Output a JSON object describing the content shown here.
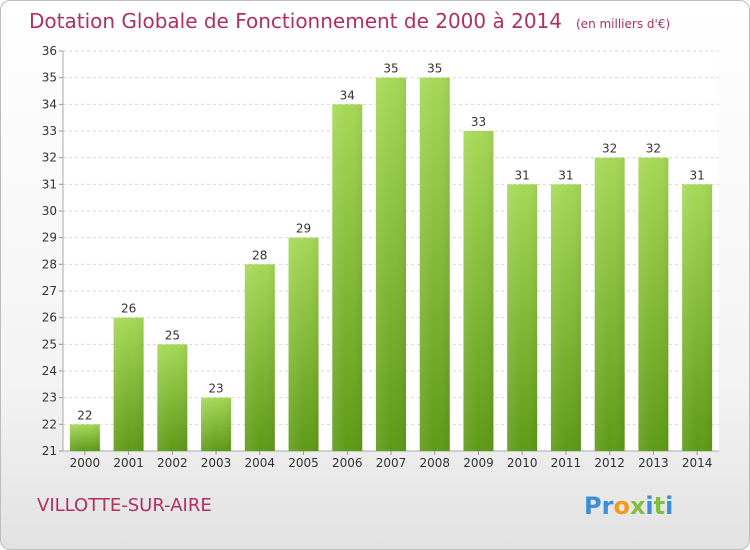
{
  "header": {
    "title": "Dotation Globale de Fonctionnement de 2000 à 2014",
    "unit_note": "(en milliers d'€)"
  },
  "footer": {
    "commune": "VILLOTTE-SUR-AIRE",
    "brand": "Proxiti"
  },
  "colors": {
    "title": "#b03060",
    "bar_light": "#a6d856",
    "bar_dark": "#5e9a16",
    "brand_letters": [
      "#3c8fd6",
      "#3c8fd6",
      "#f29a1f",
      "#7fbf3f",
      "#3c8fd6",
      "#7fbf3f",
      "#3c8fd6"
    ]
  },
  "chart_data": {
    "type": "bar",
    "title": "Dotation Globale de Fonctionnement de 2000 à 2014",
    "subtitle": "(en milliers d'€)",
    "xlabel": "",
    "ylabel": "",
    "categories": [
      "2000",
      "2001",
      "2002",
      "2003",
      "2004",
      "2005",
      "2006",
      "2007",
      "2008",
      "2009",
      "2010",
      "2011",
      "2012",
      "2013",
      "2014"
    ],
    "values": [
      22,
      26,
      25,
      23,
      28,
      29,
      34,
      35,
      35,
      33,
      31,
      31,
      32,
      32,
      31
    ],
    "ylim": [
      21,
      36
    ],
    "yticks": [
      21,
      22,
      23,
      24,
      25,
      26,
      27,
      28,
      29,
      30,
      31,
      32,
      33,
      34,
      35,
      36
    ],
    "grid": true,
    "data_labels": true
  }
}
